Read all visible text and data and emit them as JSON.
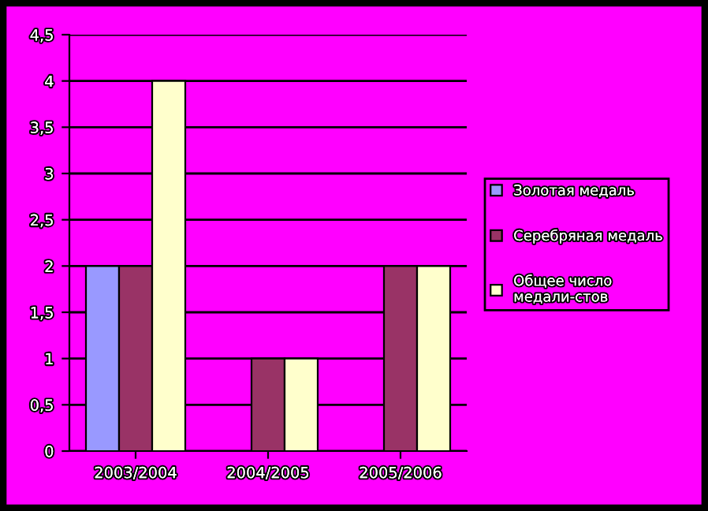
{
  "chart_data": {
    "type": "bar",
    "categories": [
      "2003/2004",
      "2004/2005",
      "2005/2006"
    ],
    "series": [
      {
        "name": "Золотая медаль",
        "color": "#9999ff",
        "values": [
          2,
          null,
          null
        ]
      },
      {
        "name": "Серебряная медаль",
        "color": "#993366",
        "values": [
          2,
          1,
          2
        ]
      },
      {
        "name": "Общее число медали-стов",
        "color": "#ffffcc",
        "values": [
          4,
          1,
          2
        ]
      }
    ],
    "ylim": [
      0,
      4.5
    ],
    "yticks": [
      0,
      {
        "value": 0.5,
        "label": "0,5"
      },
      1,
      {
        "value": 1.5,
        "label": "1,5"
      },
      2,
      {
        "value": 2.5,
        "label": "2,5"
      },
      3,
      {
        "value": 3.5,
        "label": "3,5"
      },
      4,
      {
        "value": 4.5,
        "label": "4,5"
      }
    ],
    "grid": "y",
    "legend": "right"
  }
}
